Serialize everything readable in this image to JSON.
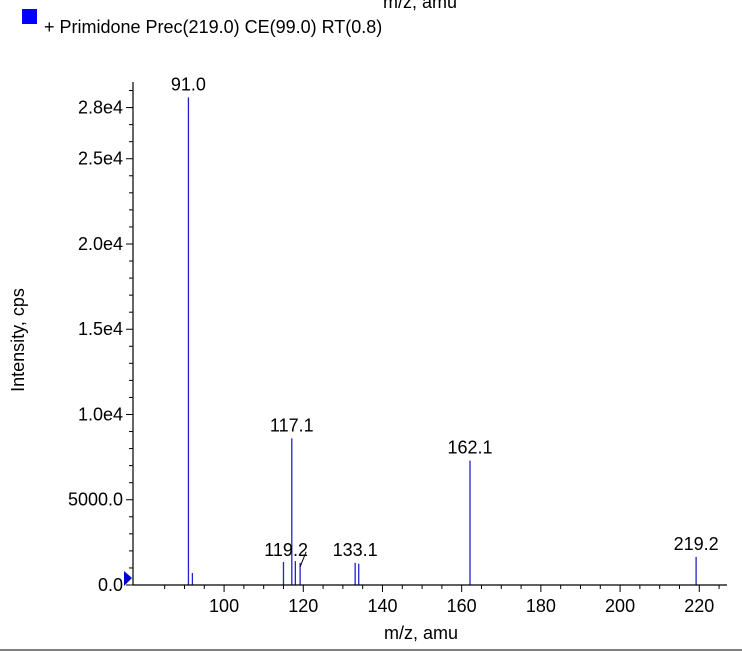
{
  "top_cut_text": "m/z, amu",
  "chart_data": {
    "type": "bar",
    "legend": {
      "label": "+ Primidone Prec(219.0) CE(99.0) RT(0.8)",
      "color": "#0000ff",
      "placement": "top-left"
    },
    "xlabel": "m/z, amu",
    "ylabel": "Intensity, cps",
    "xlim": [
      77,
      227
    ],
    "ylim": [
      0,
      29500
    ],
    "x_ticks": [
      100,
      120,
      140,
      160,
      180,
      200,
      220
    ],
    "x_tick_labels": [
      "100",
      "120",
      "140",
      "160",
      "180",
      "200",
      "220"
    ],
    "y_ticks": [
      0,
      5000,
      10000,
      15000,
      20000,
      25000,
      28000
    ],
    "y_tick_labels": [
      "0.0",
      "5000.0",
      "1.0e4",
      "1.5e4",
      "2.0e4",
      "2.5e4",
      "2.8e4"
    ],
    "series_color": "#2222cc",
    "peaks": [
      {
        "x": 91.0,
        "y": 28600
      },
      {
        "x": 92.0,
        "y": 700
      },
      {
        "x": 115.0,
        "y": 1350
      },
      {
        "x": 117.1,
        "y": 8600
      },
      {
        "x": 118.0,
        "y": 1400
      },
      {
        "x": 119.2,
        "y": 1300
      },
      {
        "x": 133.1,
        "y": 1300
      },
      {
        "x": 134.0,
        "y": 1250
      },
      {
        "x": 162.1,
        "y": 7300
      },
      {
        "x": 219.2,
        "y": 1650
      }
    ],
    "peak_labels": [
      {
        "x": 91.0,
        "text": "91.0"
      },
      {
        "x": 117.1,
        "text": "117.1"
      },
      {
        "x": 119.2,
        "text": "119.2"
      },
      {
        "x": 133.1,
        "text": "133.1"
      },
      {
        "x": 162.1,
        "text": "162.1"
      },
      {
        "x": 219.2,
        "text": "219.2"
      }
    ]
  }
}
